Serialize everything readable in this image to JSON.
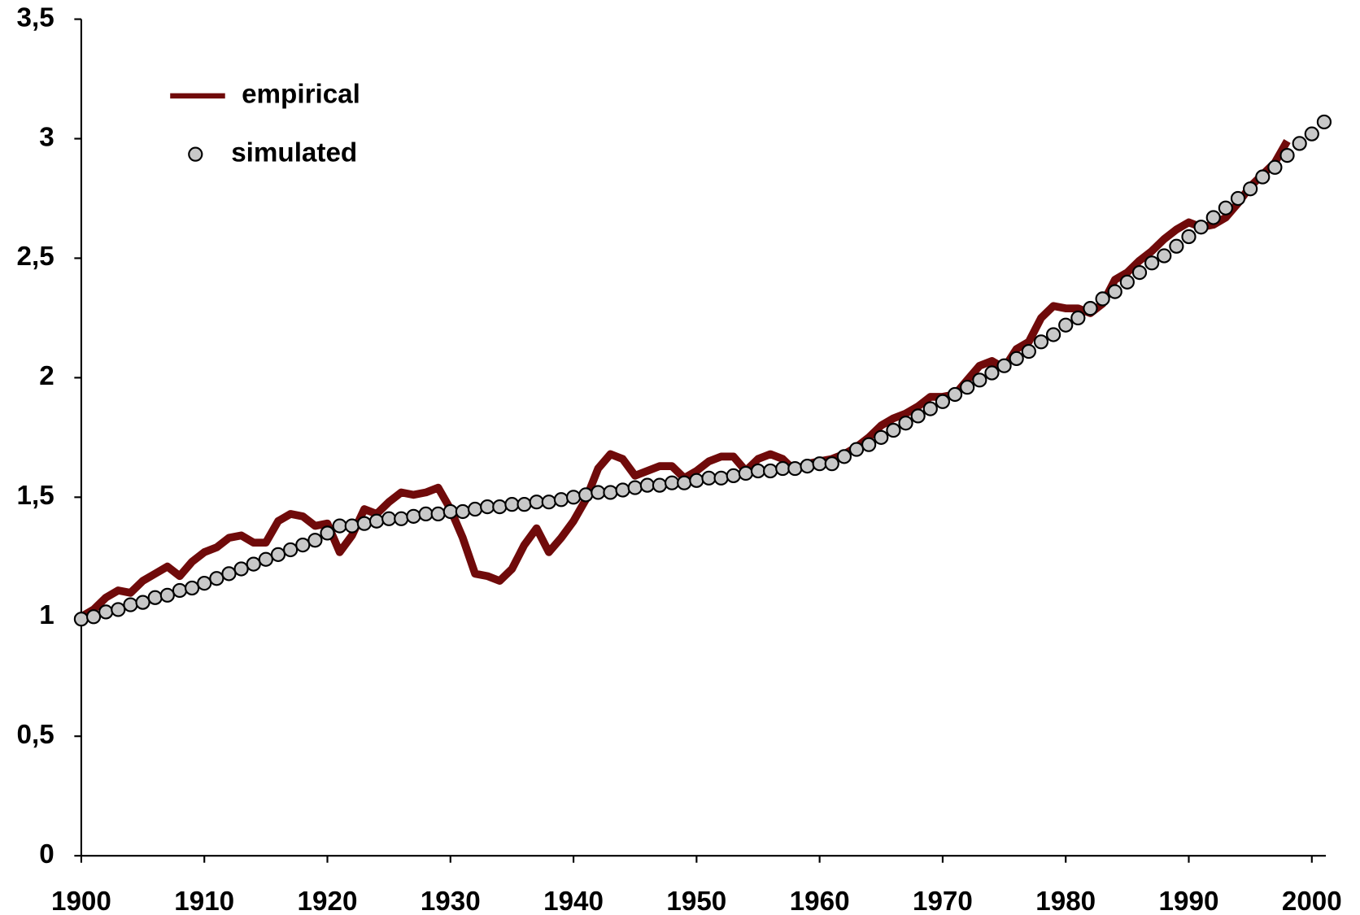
{
  "chart_data": {
    "type": "line",
    "legend": "upper left",
    "xlim": [
      1900,
      2001
    ],
    "ylim": [
      0,
      3.5
    ],
    "xticks": [
      1900,
      1910,
      1920,
      1930,
      1940,
      1950,
      1960,
      1970,
      1980,
      1990,
      2000
    ],
    "yticks": [
      0,
      {
        "value": 0.5,
        "label": "0,5"
      },
      1,
      {
        "value": 1.5,
        "label": "1,5"
      },
      2,
      {
        "value": 2.5,
        "label": "2,5"
      },
      3,
      {
        "value": 3.5,
        "label": "3,5"
      }
    ],
    "x": [
      1900,
      1901,
      1902,
      1903,
      1904,
      1905,
      1906,
      1907,
      1908,
      1909,
      1910,
      1911,
      1912,
      1913,
      1914,
      1915,
      1916,
      1917,
      1918,
      1919,
      1920,
      1921,
      1922,
      1923,
      1924,
      1925,
      1926,
      1927,
      1928,
      1929,
      1930,
      1931,
      1932,
      1933,
      1934,
      1935,
      1936,
      1937,
      1938,
      1939,
      1940,
      1941,
      1942,
      1943,
      1944,
      1945,
      1946,
      1947,
      1948,
      1949,
      1950,
      1951,
      1952,
      1953,
      1954,
      1955,
      1956,
      1957,
      1958,
      1959,
      1960,
      1961,
      1962,
      1963,
      1964,
      1965,
      1966,
      1967,
      1968,
      1969,
      1970,
      1971,
      1972,
      1973,
      1974,
      1975,
      1976,
      1977,
      1978,
      1979,
      1980,
      1981,
      1982,
      1983,
      1984,
      1985,
      1986,
      1987,
      1988,
      1989,
      1990,
      1991,
      1992,
      1993,
      1994,
      1995,
      1996,
      1997,
      1998,
      1999,
      2000,
      2001
    ],
    "series": [
      {
        "name": "empirical",
        "color": "#700a0a",
        "style": "line",
        "values": [
          1.0,
          1.03,
          1.08,
          1.11,
          1.1,
          1.15,
          1.18,
          1.21,
          1.17,
          1.23,
          1.27,
          1.29,
          1.33,
          1.34,
          1.31,
          1.31,
          1.4,
          1.43,
          1.42,
          1.38,
          1.39,
          1.27,
          1.34,
          1.45,
          1.43,
          1.48,
          1.52,
          1.51,
          1.52,
          1.54,
          1.45,
          1.33,
          1.18,
          1.17,
          1.15,
          1.2,
          1.3,
          1.37,
          1.27,
          1.33,
          1.4,
          1.49,
          1.62,
          1.68,
          1.66,
          1.59,
          1.61,
          1.63,
          1.63,
          1.58,
          1.61,
          1.65,
          1.67,
          1.67,
          1.61,
          1.66,
          1.68,
          1.66,
          1.61,
          1.64,
          1.65,
          1.66,
          1.68,
          1.71,
          1.75,
          1.8,
          1.83,
          1.85,
          1.88,
          1.92,
          1.92,
          1.93,
          1.99,
          2.05,
          2.07,
          2.04,
          2.12,
          2.15,
          2.25,
          2.3,
          2.29,
          2.29,
          2.27,
          2.31,
          2.41,
          2.44,
          2.49,
          2.53,
          2.58,
          2.62,
          2.65,
          2.63,
          2.64,
          2.67,
          2.73,
          2.8,
          2.85,
          2.9,
          2.99,
          null,
          null,
          null
        ]
      },
      {
        "name": "simulated",
        "color": "#c8c8c8",
        "style": "markers",
        "values": [
          0.99,
          1.0,
          1.02,
          1.03,
          1.05,
          1.06,
          1.08,
          1.09,
          1.11,
          1.12,
          1.14,
          1.16,
          1.18,
          1.2,
          1.22,
          1.24,
          1.26,
          1.28,
          1.3,
          1.32,
          1.35,
          1.38,
          1.38,
          1.39,
          1.4,
          1.41,
          1.41,
          1.42,
          1.43,
          1.43,
          1.44,
          1.44,
          1.45,
          1.46,
          1.46,
          1.47,
          1.47,
          1.48,
          1.48,
          1.49,
          1.5,
          1.51,
          1.52,
          1.52,
          1.53,
          1.54,
          1.55,
          1.55,
          1.56,
          1.56,
          1.57,
          1.58,
          1.58,
          1.59,
          1.6,
          1.61,
          1.61,
          1.62,
          1.62,
          1.63,
          1.64,
          1.64,
          1.67,
          1.7,
          1.72,
          1.75,
          1.78,
          1.81,
          1.84,
          1.87,
          1.9,
          1.93,
          1.96,
          1.99,
          2.02,
          2.05,
          2.08,
          2.11,
          2.15,
          2.18,
          2.22,
          2.25,
          2.29,
          2.33,
          2.36,
          2.4,
          2.44,
          2.48,
          2.51,
          2.55,
          2.59,
          2.63,
          2.67,
          2.71,
          2.75,
          2.79,
          2.84,
          2.88,
          2.93,
          2.98,
          3.02,
          3.07
        ]
      }
    ]
  }
}
